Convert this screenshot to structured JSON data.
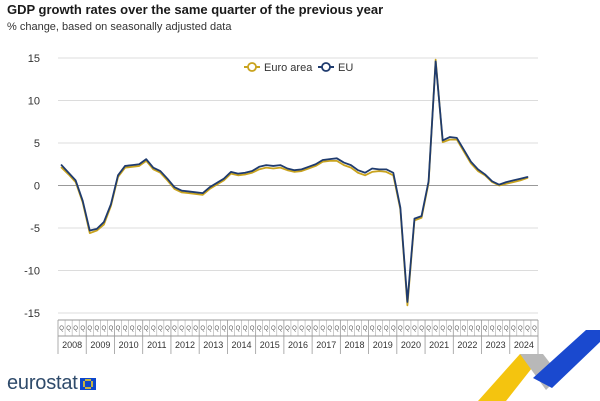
{
  "title": "GDP growth rates over the same quarter of the previous year",
  "subtitle": "% change, based on seasonally adjusted data",
  "logo_text": "eurostat",
  "colors": {
    "euro_area": "#c9a31e",
    "eu": "#1f3b6e",
    "grid": "#dcdcdc",
    "axis": "#9a9a9a",
    "zero_line": "#999999",
    "ribbon_yellow": "#f4c40f",
    "ribbon_blue": "#1a49cf",
    "ribbon_grey": "#b8b8b8"
  },
  "chart_data": {
    "type": "line",
    "xlabel": "",
    "ylabel": "",
    "ylim": [
      -15,
      15
    ],
    "yticks": [
      15,
      10,
      5,
      0,
      -5,
      -10,
      -15
    ],
    "grid": "horizontal",
    "legend_position": "top-center",
    "quarter_label": "Q",
    "years": [
      "2008",
      "2009",
      "2010",
      "2011",
      "2012",
      "2013",
      "2014",
      "2015",
      "2016",
      "2017",
      "2018",
      "2019",
      "2020",
      "2021",
      "2022",
      "2023",
      "2024"
    ],
    "x": [
      "2008-Q1",
      "2008-Q2",
      "2008-Q3",
      "2008-Q4",
      "2009-Q1",
      "2009-Q2",
      "2009-Q3",
      "2009-Q4",
      "2010-Q1",
      "2010-Q2",
      "2010-Q3",
      "2010-Q4",
      "2011-Q1",
      "2011-Q2",
      "2011-Q3",
      "2011-Q4",
      "2012-Q1",
      "2012-Q2",
      "2012-Q3",
      "2012-Q4",
      "2013-Q1",
      "2013-Q2",
      "2013-Q3",
      "2013-Q4",
      "2014-Q1",
      "2014-Q2",
      "2014-Q3",
      "2014-Q4",
      "2015-Q1",
      "2015-Q2",
      "2015-Q3",
      "2015-Q4",
      "2016-Q1",
      "2016-Q2",
      "2016-Q3",
      "2016-Q4",
      "2017-Q1",
      "2017-Q2",
      "2017-Q3",
      "2017-Q4",
      "2018-Q1",
      "2018-Q2",
      "2018-Q3",
      "2018-Q4",
      "2019-Q1",
      "2019-Q2",
      "2019-Q3",
      "2019-Q4",
      "2020-Q1",
      "2020-Q2",
      "2020-Q3",
      "2020-Q4",
      "2021-Q1",
      "2021-Q2",
      "2021-Q3",
      "2021-Q4",
      "2022-Q1",
      "2022-Q2",
      "2022-Q3",
      "2022-Q4",
      "2023-Q1",
      "2023-Q2",
      "2023-Q3",
      "2023-Q4",
      "2024-Q1",
      "2024-Q2",
      "2024-Q3"
    ],
    "series": [
      {
        "name": "Euro area",
        "values": [
          2.1,
          1.3,
          0.4,
          -2.0,
          -5.6,
          -5.3,
          -4.6,
          -2.4,
          1.0,
          2.1,
          2.2,
          2.3,
          2.9,
          1.9,
          1.5,
          0.6,
          -0.4,
          -0.8,
          -0.9,
          -1.0,
          -1.1,
          -0.4,
          0.1,
          0.6,
          1.4,
          1.2,
          1.3,
          1.5,
          1.9,
          2.1,
          2.0,
          2.1,
          1.8,
          1.6,
          1.7,
          2.0,
          2.3,
          2.8,
          2.9,
          2.9,
          2.4,
          2.1,
          1.5,
          1.2,
          1.6,
          1.7,
          1.6,
          1.2,
          -2.8,
          -14.1,
          -4.1,
          -3.8,
          0.3,
          14.8,
          5.1,
          5.4,
          5.4,
          4.0,
          2.6,
          1.7,
          1.2,
          0.4,
          0.0,
          0.2,
          0.4,
          0.6,
          0.9
        ]
      },
      {
        "name": "EU",
        "values": [
          2.4,
          1.5,
          0.6,
          -1.8,
          -5.3,
          -5.1,
          -4.3,
          -2.2,
          1.2,
          2.3,
          2.4,
          2.5,
          3.1,
          2.1,
          1.7,
          0.8,
          -0.2,
          -0.6,
          -0.7,
          -0.8,
          -0.9,
          -0.2,
          0.3,
          0.8,
          1.6,
          1.4,
          1.5,
          1.7,
          2.2,
          2.4,
          2.3,
          2.4,
          2.0,
          1.8,
          1.9,
          2.2,
          2.5,
          3.0,
          3.1,
          3.2,
          2.7,
          2.4,
          1.8,
          1.5,
          2.0,
          1.9,
          1.9,
          1.5,
          -2.6,
          -13.7,
          -3.9,
          -3.6,
          0.5,
          14.6,
          5.3,
          5.7,
          5.6,
          4.2,
          2.8,
          1.9,
          1.3,
          0.5,
          0.1,
          0.4,
          0.6,
          0.8,
          1.0
        ]
      }
    ]
  }
}
